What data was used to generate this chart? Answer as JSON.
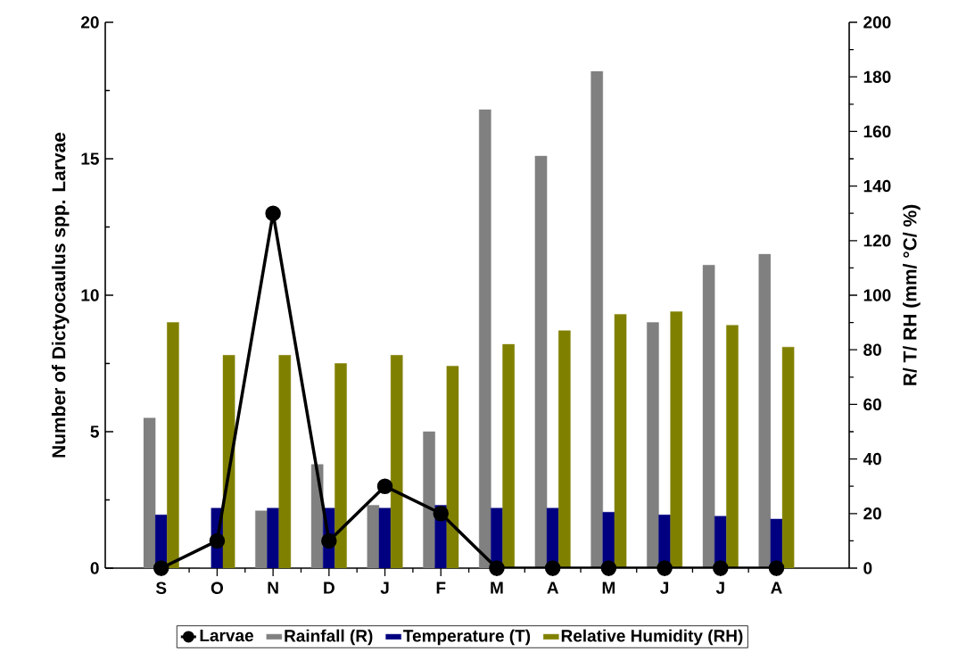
{
  "chart_data": {
    "type": "bar",
    "categories": [
      "S",
      "O",
      "N",
      "D",
      "J",
      "F",
      "M",
      "A",
      "M",
      "J",
      "J",
      "A"
    ],
    "series": [
      {
        "name": "Larvae",
        "type": "line",
        "axis": "y",
        "color": "#000000",
        "marker": "circle",
        "values": [
          0,
          1,
          13,
          1,
          3,
          2,
          0,
          0,
          0,
          0,
          0,
          0
        ]
      },
      {
        "name": "Rainfall (R)",
        "axis": "y2",
        "color": "#808080",
        "values": [
          55,
          0,
          21,
          38,
          23,
          50,
          168,
          151,
          182,
          90,
          111,
          115
        ]
      },
      {
        "name": "Temperature (T)",
        "axis": "y2",
        "color": "#000080",
        "values": [
          19.5,
          22,
          22,
          22,
          22,
          23,
          22,
          22,
          20.5,
          19.5,
          19,
          18
        ]
      },
      {
        "name": "Relative Humidity (RH)",
        "axis": "y2",
        "color": "#808000",
        "values": [
          90,
          78,
          78,
          75,
          78,
          74,
          82,
          87,
          93,
          94,
          89,
          81
        ]
      }
    ],
    "ylabel": "Number of Dictyocaulus spp. Larvae",
    "y2label": "R/ T/ RH (mm/ °C/ %)",
    "ylim": [
      0,
      20
    ],
    "yticks": [
      0,
      5,
      10,
      15,
      20
    ],
    "y2lim": [
      0,
      200
    ],
    "y2ticks": [
      0,
      20,
      40,
      60,
      80,
      100,
      120,
      140,
      160,
      180,
      200
    ],
    "legend": "bottom"
  }
}
